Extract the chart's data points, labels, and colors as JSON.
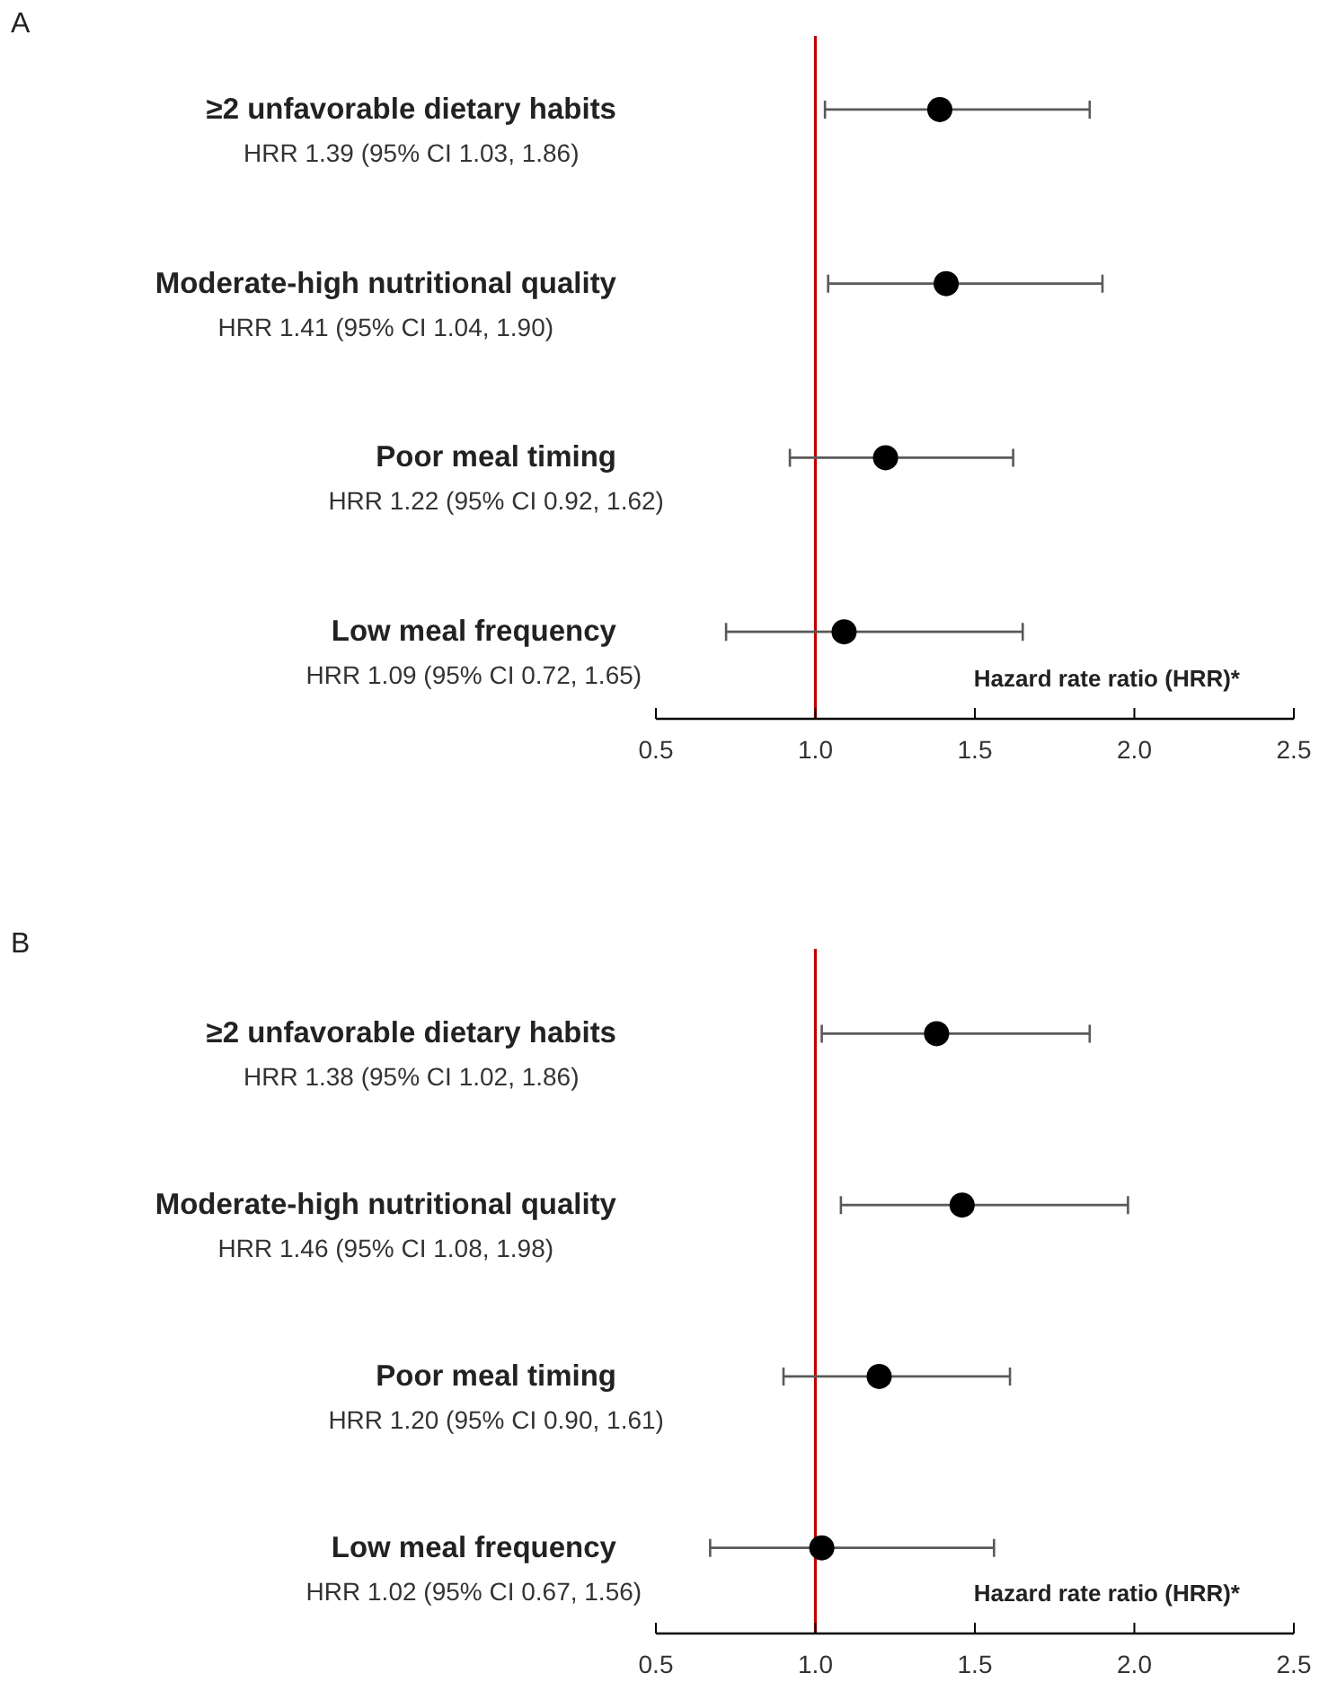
{
  "chart_data": [
    {
      "type": "scatter",
      "orientation": "horizontal",
      "title": "A",
      "xlabel": "Hazard rate ratio (HRR)*",
      "marker": "circle",
      "color": "#000000",
      "categories": [
        "≥2 unfavorable dietary habits",
        "Moderate-high nutritional quality",
        "Poor meal timing",
        "Low meal frequency"
      ],
      "values": [
        1.39,
        1.41,
        1.22,
        1.09
      ],
      "errors": [
        [
          1.03,
          1.86
        ],
        [
          1.04,
          1.9
        ],
        [
          0.92,
          1.62
        ],
        [
          0.72,
          1.65
        ]
      ],
      "annotations": [
        "HRR 1.39 (95% CI 1.03, 1.86)",
        "HRR 1.41 (95% CI 1.04, 1.90)",
        "HRR 1.22 (95% CI 0.92, 1.62)",
        "HRR 1.09 (95% CI 0.72, 1.65)"
      ],
      "xlim": [
        0.5,
        2.5
      ],
      "xticks": [
        {
          "value": 0.5,
          "label": "0.5"
        },
        {
          "value": 1,
          "label": "1.0"
        },
        {
          "value": 1.5,
          "label": "1.5"
        },
        {
          "value": 2,
          "label": "2.0"
        },
        {
          "value": 2.5,
          "label": "2.5"
        }
      ],
      "ref_lines": [
        {
          "axis": "x",
          "value": 1,
          "color": "#c00000"
        }
      ]
    },
    {
      "type": "scatter",
      "orientation": "horizontal",
      "title": "B",
      "xlabel": "Hazard rate ratio (HRR)*",
      "marker": "circle",
      "color": "#000000",
      "categories": [
        "≥2 unfavorable dietary habits",
        "Moderate-high nutritional quality",
        "Poor meal timing",
        "Low meal frequency"
      ],
      "values": [
        1.38,
        1.46,
        1.2,
        1.02
      ],
      "errors": [
        [
          1.02,
          1.86
        ],
        [
          1.08,
          1.98
        ],
        [
          0.9,
          1.61
        ],
        [
          0.67,
          1.56
        ]
      ],
      "annotations": [
        "HRR 1.38 (95% CI 1.02, 1.86)",
        "HRR 1.46 (95% CI 1.08, 1.98)",
        "HRR 1.20 (95% CI 0.90, 1.61)",
        "HRR 1.02 (95% CI 0.67, 1.56)"
      ],
      "xlim": [
        0.5,
        2.5
      ],
      "xticks": [
        {
          "value": 0.5,
          "label": "0.5"
        },
        {
          "value": 1,
          "label": "1.0"
        },
        {
          "value": 1.5,
          "label": "1.5"
        },
        {
          "value": 2,
          "label": "2.0"
        },
        {
          "value": 2.5,
          "label": "2.5"
        }
      ],
      "ref_lines": [
        {
          "axis": "x",
          "value": 1,
          "color": "#c00000"
        }
      ]
    }
  ]
}
